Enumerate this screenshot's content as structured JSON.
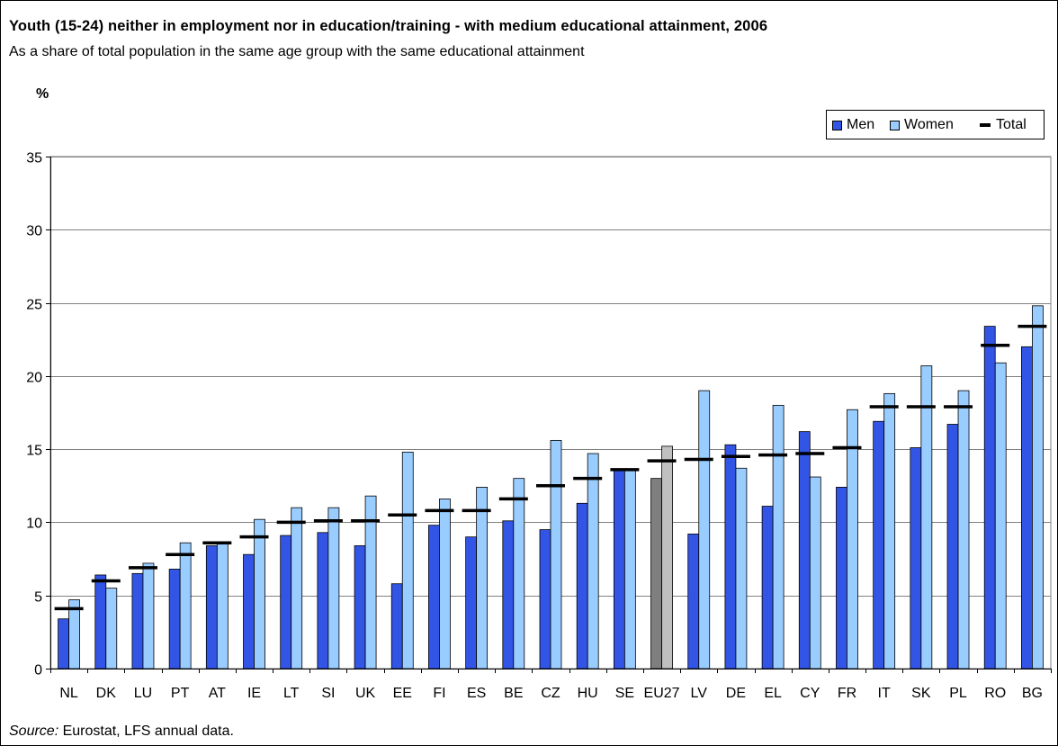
{
  "title": "Youth (15-24) neither in employment nor in education/training - with medium educational attainment, 2006",
  "subtitle": "As a share of total population in the same age group with the same educational attainment",
  "source": {
    "label": "Source:",
    "text": "Eurostat, LFS annual data."
  },
  "colors": {
    "men": "#3355e6",
    "women": "#99ccff",
    "eu_men": "#7f7f7f",
    "eu_women": "#c0c0c0",
    "total": "#000000",
    "grid": "#808080"
  },
  "chart_data": {
    "type": "bar",
    "title": "Youth (15-24) neither in employment nor in education/training - with medium educational attainment, 2006",
    "ylabel": "%",
    "xlabel": "",
    "ylim": [
      0,
      35
    ],
    "yticks": [
      0,
      5,
      10,
      15,
      20,
      25,
      30,
      35
    ],
    "grid": true,
    "legend_position": "top-right",
    "categories": [
      "NL",
      "DK",
      "LU",
      "PT",
      "AT",
      "IE",
      "LT",
      "SI",
      "UK",
      "EE",
      "FI",
      "ES",
      "BE",
      "CZ",
      "HU",
      "SE",
      "EU27",
      "LV",
      "DE",
      "EL",
      "CY",
      "FR",
      "IT",
      "SK",
      "PL",
      "RO",
      "BG"
    ],
    "highlight_category": "EU27",
    "series": [
      {
        "name": "Men",
        "style": "bar",
        "values": [
          3.4,
          6.4,
          6.5,
          6.8,
          8.4,
          7.8,
          9.1,
          9.3,
          8.4,
          5.8,
          9.8,
          9.0,
          10.1,
          9.5,
          11.3,
          13.6,
          13.0,
          9.2,
          15.3,
          11.1,
          16.2,
          12.4,
          16.9,
          15.1,
          16.7,
          23.4,
          22.0
        ]
      },
      {
        "name": "Women",
        "style": "bar",
        "values": [
          4.7,
          5.5,
          7.2,
          8.6,
          8.6,
          10.2,
          11.0,
          11.0,
          11.8,
          14.8,
          11.6,
          12.4,
          13.0,
          15.6,
          14.7,
          13.6,
          15.2,
          19.0,
          13.7,
          18.0,
          13.1,
          17.7,
          18.8,
          20.7,
          19.0,
          20.9,
          24.8
        ]
      },
      {
        "name": "Total",
        "style": "marker",
        "values": [
          4.1,
          6.0,
          6.9,
          7.8,
          8.6,
          9.0,
          10.0,
          10.1,
          10.1,
          10.5,
          10.8,
          10.8,
          11.6,
          12.5,
          13.0,
          13.6,
          14.2,
          14.3,
          14.5,
          14.6,
          14.7,
          15.1,
          17.9,
          17.9,
          17.9,
          22.1,
          23.4
        ]
      }
    ]
  }
}
